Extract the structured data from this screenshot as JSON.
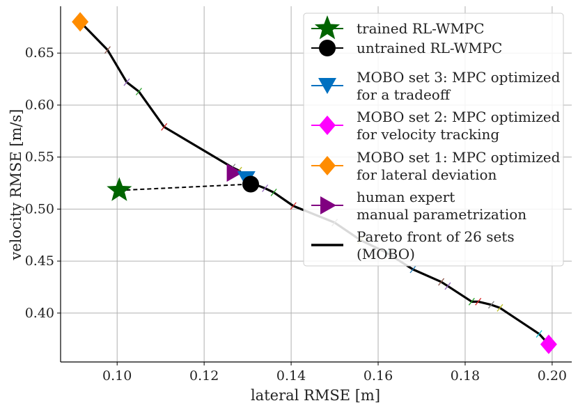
{
  "chart_data": {
    "type": "line",
    "title": "",
    "xlabel": "lateral RMSE [m]",
    "ylabel": "velocity RMSE [m/s]",
    "xlim": [
      0.087,
      0.2045
    ],
    "ylim": [
      0.353,
      0.695
    ],
    "x_ticks": [
      0.1,
      0.12,
      0.14,
      0.16,
      0.18,
      0.2
    ],
    "x_tick_labels": [
      "0.10",
      "0.12",
      "0.14",
      "0.16",
      "0.18",
      "0.20"
    ],
    "y_ticks": [
      0.4,
      0.45,
      0.5,
      0.55,
      0.6,
      0.65
    ],
    "y_tick_labels": [
      "0.40",
      "0.45",
      "0.50",
      "0.55",
      "0.60",
      "0.65"
    ],
    "grid": true,
    "legend_position": "top-right",
    "series": [
      {
        "name": "Pareto front of 26 sets (MOBO)",
        "kind": "line",
        "color": "#000000",
        "points": [
          [
            0.0915,
            0.68
          ],
          [
            0.0978,
            0.653
          ],
          [
            0.1022,
            0.622
          ],
          [
            0.105,
            0.613
          ],
          [
            0.1108,
            0.579
          ],
          [
            0.1265,
            0.54
          ],
          [
            0.128,
            0.537
          ],
          [
            0.13,
            0.53
          ],
          [
            0.1308,
            0.527
          ],
          [
            0.1315,
            0.524
          ],
          [
            0.134,
            0.52
          ],
          [
            0.136,
            0.516
          ],
          [
            0.1405,
            0.503
          ],
          [
            0.15,
            0.487
          ],
          [
            0.156,
            0.47
          ],
          [
            0.162,
            0.458
          ],
          [
            0.168,
            0.442
          ],
          [
            0.1745,
            0.43
          ],
          [
            0.176,
            0.426
          ],
          [
            0.1815,
            0.411
          ],
          [
            0.183,
            0.411
          ],
          [
            0.186,
            0.408
          ],
          [
            0.188,
            0.405
          ],
          [
            0.197,
            0.38
          ],
          [
            0.1992,
            0.37
          ]
        ]
      },
      {
        "name": "trained RL-WMPC",
        "kind": "marker",
        "marker": "star",
        "color": "#006400",
        "points": [
          [
            0.1005,
            0.518
          ]
        ]
      },
      {
        "name": "untrained RL-WMPC",
        "kind": "marker",
        "marker": "circle",
        "color": "#000000",
        "points": [
          [
            0.1307,
            0.524
          ]
        ]
      },
      {
        "name": "MOBO set 3: MPC optimized for a tradeoff",
        "kind": "marker",
        "marker": "triangle-down",
        "color": "#0070c0",
        "points": [
          [
            0.1297,
            0.529
          ]
        ]
      },
      {
        "name": "MOBO set 2: MPC optimized for velocity tracking",
        "kind": "marker",
        "marker": "diamond",
        "color": "#ff00ff",
        "points": [
          [
            0.1992,
            0.37
          ]
        ]
      },
      {
        "name": "MOBO set 1: MPC optimized for lateral deviation",
        "kind": "marker",
        "marker": "diamond",
        "color": "#ff8c00",
        "points": [
          [
            0.0915,
            0.68
          ]
        ]
      },
      {
        "name": "human expert manual parametrization",
        "kind": "marker",
        "marker": "triangle-right",
        "color": "#800080",
        "points": [
          [
            0.1268,
            0.535
          ]
        ]
      }
    ],
    "connector": {
      "style": "dashed",
      "color": "#000000",
      "points": [
        [
          0.1005,
          0.518
        ],
        [
          0.1307,
          0.524
        ]
      ]
    },
    "legend": [
      {
        "marker": "star",
        "color": "#006400",
        "lines": [
          "trained RL-WMPC"
        ]
      },
      {
        "marker": "circle",
        "color": "#000000",
        "lines": [
          "untrained RL-WMPC"
        ]
      },
      {
        "marker": "triangle-down",
        "color": "#0070c0",
        "lines": [
          "MOBO set 3: MPC optimized",
          "for a tradeoff"
        ]
      },
      {
        "marker": "diamond",
        "color": "#ff00ff",
        "lines": [
          "MOBO set 2: MPC optimized",
          "for velocity tracking"
        ]
      },
      {
        "marker": "diamond",
        "color": "#ff8c00",
        "lines": [
          "MOBO set 1: MPC optimized",
          "for lateral deviation"
        ]
      },
      {
        "marker": "triangle-right",
        "color": "#800080",
        "lines": [
          "human expert",
          "manual parametrization"
        ]
      },
      {
        "marker": "line",
        "color": "#000000",
        "lines": [
          "Pareto front of 26 sets",
          "(MOBO)"
        ]
      }
    ]
  }
}
